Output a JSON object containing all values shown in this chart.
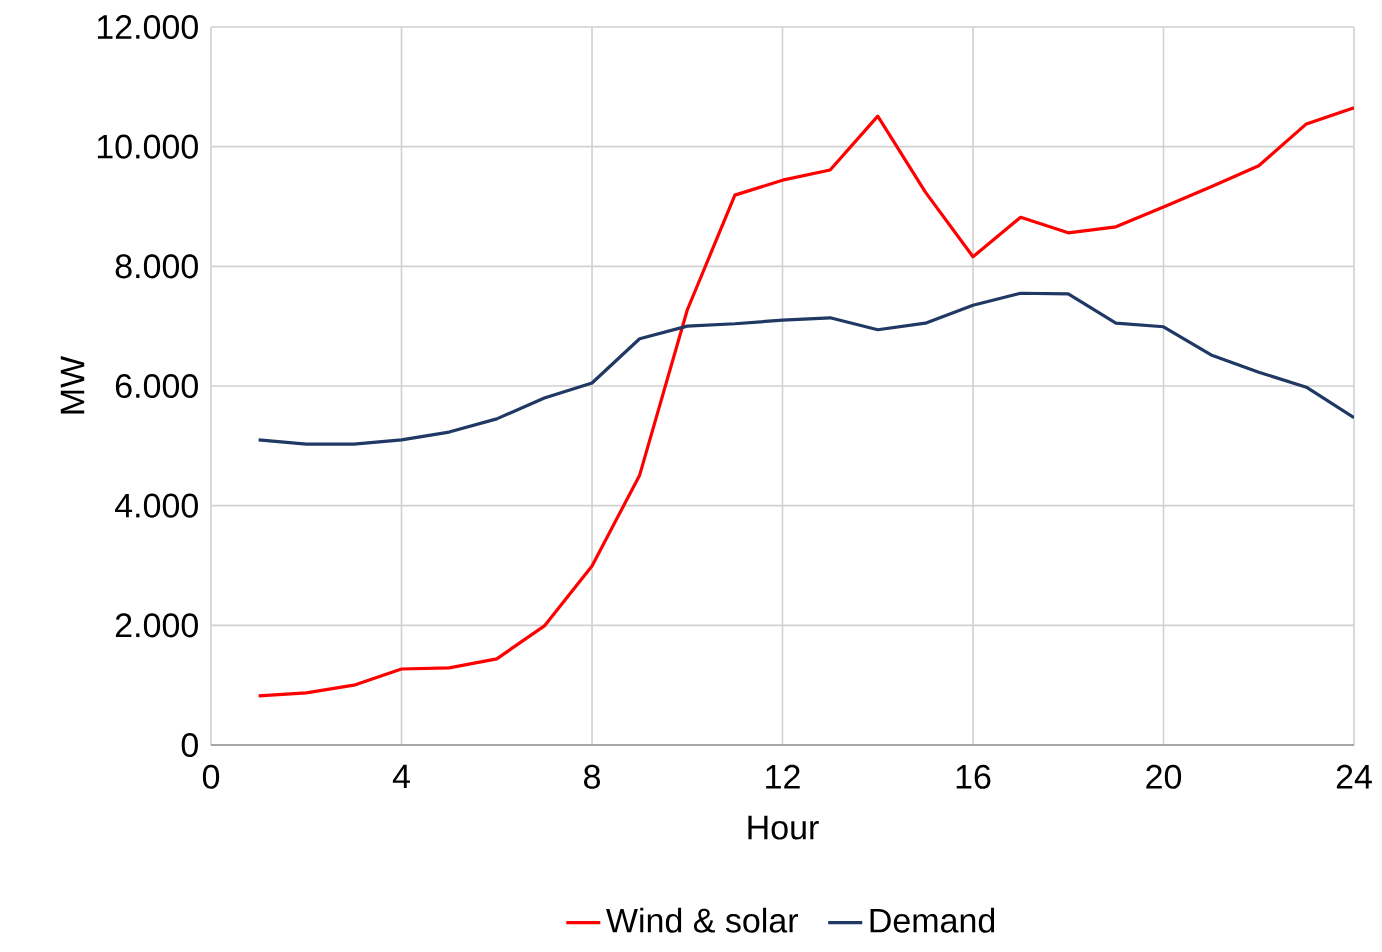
{
  "chart_data": {
    "type": "line",
    "xlabel": "Hour",
    "ylabel": "MW",
    "x": [
      1,
      2,
      3,
      4,
      5,
      6,
      7,
      8,
      9,
      10,
      11,
      12,
      13,
      14,
      15,
      16,
      17,
      18,
      19,
      20,
      21,
      22,
      23,
      24
    ],
    "series": [
      {
        "name": "Wind & solar",
        "color": "#ff0000",
        "values": [
          820,
          870,
          1000,
          1270,
          1290,
          1440,
          1990,
          2990,
          4510,
          7270,
          9190,
          9440,
          9610,
          10510,
          9240,
          8160,
          8820,
          8560,
          8660,
          8990,
          9330,
          9680,
          10380,
          10650
        ]
      },
      {
        "name": "Demand",
        "color": "#203864",
        "values": [
          5100,
          5030,
          5030,
          5100,
          5230,
          5450,
          5800,
          6050,
          6790,
          7000,
          7040,
          7100,
          7140,
          6940,
          7050,
          7350,
          7550,
          7540,
          7050,
          6990,
          6520,
          6230,
          5980,
          5470
        ]
      }
    ],
    "xlim": [
      0,
      24
    ],
    "xticks": [
      0,
      4,
      8,
      12,
      16,
      20,
      24
    ],
    "ylim": [
      0,
      12000
    ],
    "yticks": [
      {
        "value": 0,
        "label": "0"
      },
      {
        "value": 2000,
        "label": "2.000"
      },
      {
        "value": 4000,
        "label": "4.000"
      },
      {
        "value": 6000,
        "label": "6.000"
      },
      {
        "value": 8000,
        "label": "8.000"
      },
      {
        "value": 10000,
        "label": "10.000"
      },
      {
        "value": 12000,
        "label": "12.000"
      }
    ],
    "grid": true,
    "legend": "bottom",
    "marker": "none",
    "line_style": "solid"
  }
}
